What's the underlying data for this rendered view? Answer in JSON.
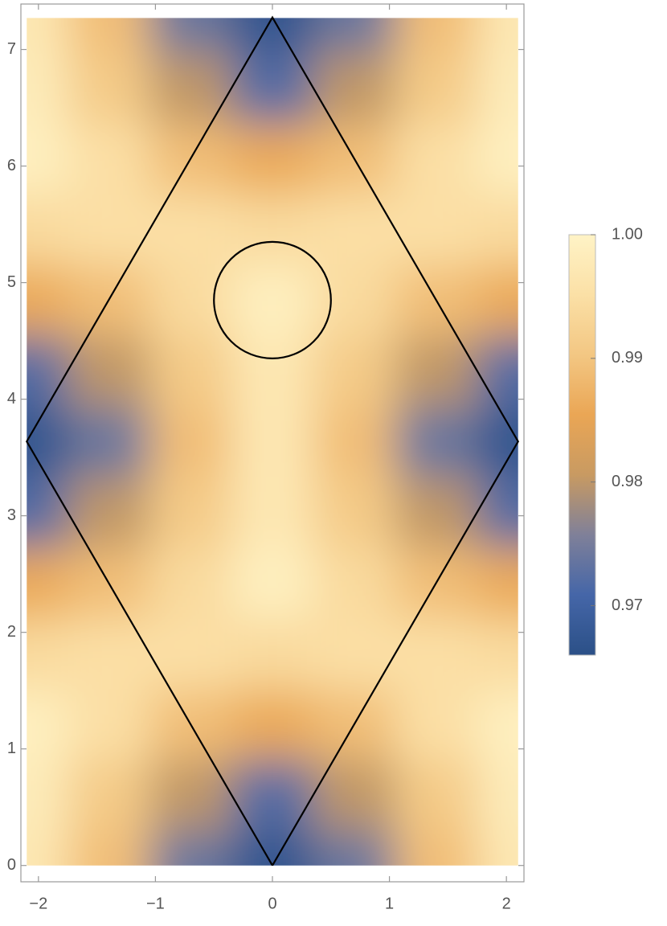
{
  "chart_data": {
    "type": "heatmap",
    "x": [
      -2.1,
      -1.4,
      -0.7,
      0,
      0.7,
      1.4,
      2.1
    ],
    "y": [
      0,
      0.61,
      1.21,
      1.82,
      2.42,
      3.03,
      3.64,
      4.24,
      4.85,
      5.46,
      6.06,
      6.67,
      7.27
    ],
    "z": [
      [
        0.997,
        0.989,
        0.974,
        0.967,
        0.974,
        0.989,
        0.997
      ],
      [
        0.998,
        0.991,
        0.98,
        0.972,
        0.98,
        0.991,
        0.998
      ],
      [
        0.999,
        0.995,
        0.989,
        0.986,
        0.989,
        0.995,
        0.999
      ],
      [
        0.994,
        0.995,
        0.995,
        0.994,
        0.995,
        0.995,
        0.994
      ],
      [
        0.986,
        0.989,
        0.994,
        0.999,
        0.994,
        0.989,
        0.986
      ],
      [
        0.972,
        0.98,
        0.991,
        0.997,
        0.991,
        0.98,
        0.972
      ],
      [
        0.967,
        0.974,
        0.989,
        0.997,
        0.989,
        0.974,
        0.967
      ],
      [
        0.972,
        0.98,
        0.991,
        0.997,
        0.991,
        0.98,
        0.972
      ],
      [
        0.986,
        0.989,
        0.994,
        0.999,
        0.994,
        0.989,
        0.986
      ],
      [
        0.994,
        0.995,
        0.995,
        0.994,
        0.995,
        0.995,
        0.994
      ],
      [
        0.999,
        0.995,
        0.989,
        0.986,
        0.989,
        0.995,
        0.999
      ],
      [
        0.998,
        0.991,
        0.98,
        0.972,
        0.98,
        0.991,
        0.998
      ],
      [
        0.997,
        0.989,
        0.974,
        0.967,
        0.974,
        0.989,
        0.997
      ]
    ],
    "zlim": [
      0.966,
      1.0
    ],
    "colormap": [
      "#2b5087",
      "#4566a8",
      "#7f8099",
      "#c89a62",
      "#eaa655",
      "#f3c783",
      "#fbe0a6",
      "#fff3c6"
    ],
    "colorbar_ticks": [
      0.97,
      0.98,
      0.99,
      {
        "value": 1.0,
        "label": "1.00"
      }
    ],
    "xlim": [
      -2.15,
      2.15
    ],
    "ylim": [
      -0.14,
      7.39
    ],
    "xticks": [
      {
        "value": -2,
        "label": "−2"
      },
      {
        "value": -1,
        "label": "−1"
      },
      0,
      1,
      2
    ],
    "yticks": [
      0,
      1,
      2,
      3,
      4,
      5,
      6,
      7
    ],
    "polygon": {
      "x": [
        0,
        2.1,
        0,
        -2.1,
        0
      ],
      "y": [
        0,
        3.637,
        7.275,
        3.637,
        0
      ],
      "color": "#000000"
    },
    "circle": {
      "center": [
        0,
        4.85
      ],
      "radius": 0.5,
      "color": "#000000"
    }
  }
}
